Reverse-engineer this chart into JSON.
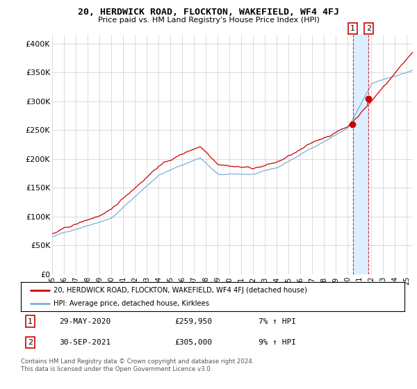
{
  "title": "20, HERDWICK ROAD, FLOCKTON, WAKEFIELD, WF4 4FJ",
  "subtitle": "Price paid vs. HM Land Registry's House Price Index (HPI)",
  "ylabel_ticks": [
    "£0",
    "£50K",
    "£100K",
    "£150K",
    "£200K",
    "£250K",
    "£300K",
    "£350K",
    "£400K"
  ],
  "ytick_values": [
    0,
    50000,
    100000,
    150000,
    200000,
    250000,
    300000,
    350000,
    400000
  ],
  "ylim": [
    0,
    415000
  ],
  "xlim_start": 1995.0,
  "xlim_end": 2025.5,
  "red_color": "#cc0000",
  "blue_color": "#7bafd4",
  "shade_color": "#ddeeff",
  "legend_label_red": "20, HERDWICK ROAD, FLOCKTON, WAKEFIELD, WF4 4FJ (detached house)",
  "legend_label_blue": "HPI: Average price, detached house, Kirklees",
  "annotation1_label": "1",
  "annotation1_date": "29-MAY-2020",
  "annotation1_price": "£259,950",
  "annotation1_hpi": "7% ↑ HPI",
  "annotation2_label": "2",
  "annotation2_date": "30-SEP-2021",
  "annotation2_price": "£305,000",
  "annotation2_hpi": "9% ↑ HPI",
  "footnote": "Contains HM Land Registry data © Crown copyright and database right 2024.\nThis data is licensed under the Open Government Licence v3.0.",
  "background_color": "#ffffff",
  "grid_color": "#cccccc",
  "ann1_x": 2020.42,
  "ann2_x": 2021.75,
  "ann1_y_red": 259950,
  "ann2_y_red": 305000
}
